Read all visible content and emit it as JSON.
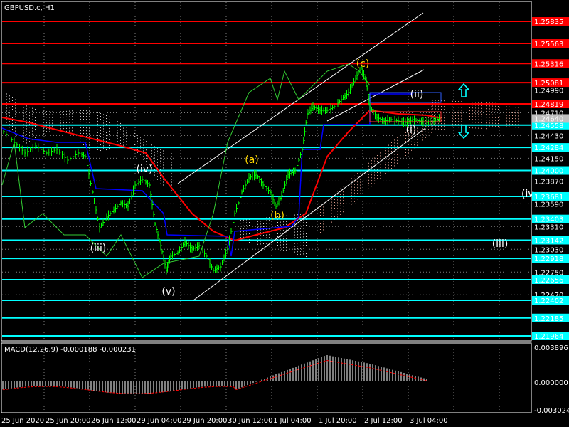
{
  "title": "GBPUSD.c, H1",
  "macd_label": "MACD(12,26,9) -0.000188 -0.000231",
  "colors": {
    "background": "#000000",
    "grid": "#7f7f7f",
    "price_bars": "#00ff00",
    "red_level": "#ff0000",
    "cyan_level": "#00ffff",
    "red_box": "#ff0000",
    "cyan_box": "#00ffff",
    "axis_text": "#ffffff",
    "wave_yellow": "#ffd700",
    "wave_white": "#ffffff",
    "ma_red": "#ff0000",
    "ma_blue": "#0000ff",
    "cloud": "#ffffff",
    "channel": "#ffffff",
    "macd_signal": "#ff0000",
    "macd_hist": "#ffffff"
  },
  "price_axis": {
    "red_levels": [
      "1.25835",
      "1.25563",
      "1.25316",
      "1.25081",
      "1.24819"
    ],
    "cyan_levels": [
      "1.24558",
      "1.24284",
      "1.24000",
      "1.23681",
      "1.23403",
      "1.23142",
      "1.22918",
      "1.22656",
      "1.22402",
      "1.22185",
      "1.21964"
    ],
    "current_price": "1.24640",
    "gray_ticks": [
      "1.24990",
      "1.24710",
      "1.24430",
      "1.24150",
      "1.23870",
      "1.23590",
      "1.23310",
      "1.23030",
      "1.22750",
      "1.22470"
    ]
  },
  "macd_axis": {
    "ticks": [
      "0.003896",
      "0.000000",
      "-0.003024"
    ]
  },
  "time_axis": {
    "labels": [
      "25 Jun 2020",
      "25 Jun 20:00",
      "26 Jun 12:00",
      "29 Jun 04:00",
      "29 Jun 20:00",
      "30 Jun 12:00",
      "1 Jul 04:00",
      "1 Jul 20:00",
      "2 Jul 12:00",
      "3 Jul 04:00"
    ]
  },
  "waves": {
    "c": "(c)",
    "a": "(a)",
    "b": "(b)",
    "iv": "(iv)",
    "iii": "(iii)",
    "v": "(v)",
    "ii": "(ii)",
    "i": "(i)",
    "iii_right": "(iii)",
    "iv_right": "(iv"
  },
  "arrows": {
    "up": "up-arrow-icon",
    "down": "down-arrow-icon"
  }
}
